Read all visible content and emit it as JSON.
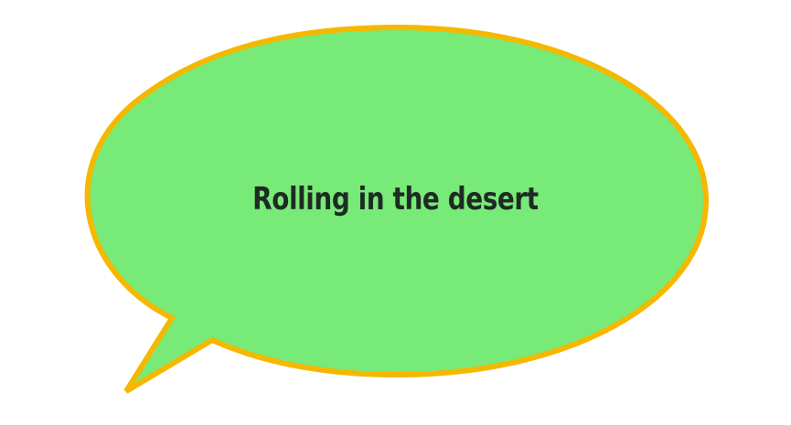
{
  "bubble": {
    "text": "Rolling in the desert",
    "fill_color": "#77EA77",
    "stroke_color": "#F5B800",
    "text_color": "#1F2A24"
  }
}
